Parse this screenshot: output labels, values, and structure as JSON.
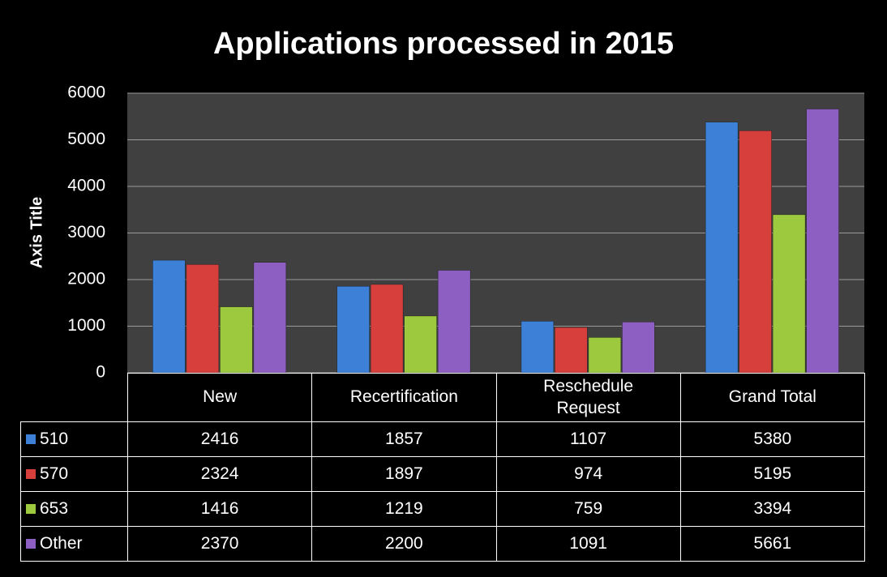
{
  "chart_data": {
    "type": "bar",
    "title": "Applications processed in 2015",
    "y_axis_label": "Axis Title",
    "categories": [
      "New",
      "Recertification",
      "Reschedule Request",
      "Grand Total"
    ],
    "series": [
      {
        "name": "510",
        "color": "#3d80d8",
        "values": [
          2416,
          1857,
          1107,
          5380
        ]
      },
      {
        "name": "570",
        "color": "#d63f3b",
        "values": [
          2324,
          1897,
          974,
          5195
        ]
      },
      {
        "name": "653",
        "color": "#9cc93e",
        "values": [
          1416,
          1219,
          759,
          3394
        ]
      },
      {
        "name": "Other",
        "color": "#8d5fc2",
        "values": [
          2370,
          2200,
          1091,
          5661
        ]
      }
    ],
    "ylim": [
      0,
      6000
    ],
    "yticks": [
      0,
      1000,
      2000,
      3000,
      4000,
      5000,
      6000
    ],
    "grid": true,
    "data_table": true
  }
}
